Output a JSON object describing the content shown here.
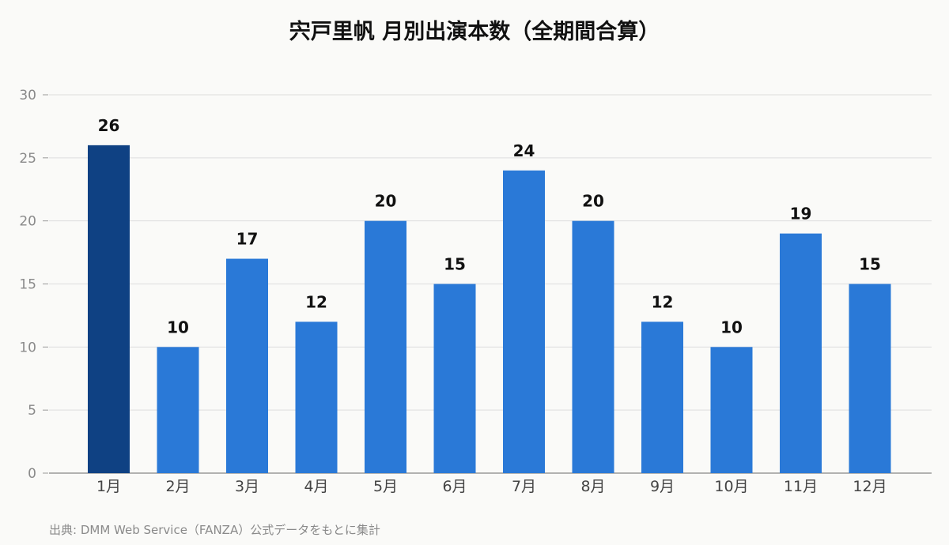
{
  "chart_data": {
    "type": "bar",
    "title": "宍戸里帆 月別出演本数（全期間合算）",
    "categories": [
      "1月",
      "2月",
      "3月",
      "4月",
      "5月",
      "6月",
      "7月",
      "8月",
      "9月",
      "10月",
      "11月",
      "12月"
    ],
    "values": [
      26,
      10,
      17,
      12,
      20,
      15,
      24,
      20,
      12,
      10,
      19,
      15
    ],
    "xlabel": "",
    "ylabel": "",
    "ylim": [
      0,
      30
    ],
    "yticks": [
      0,
      5,
      10,
      15,
      20,
      25,
      30
    ],
    "grid": true,
    "legend": "none",
    "colors": {
      "bar": "#2a79d7",
      "highlight_bar": "#0f4183",
      "grid": "#dddddd",
      "axis": "#999999"
    },
    "highlight_index": 0
  },
  "footer": {
    "source": "出典: DMM Web Service（FANZA）公式データをもとに集計"
  }
}
